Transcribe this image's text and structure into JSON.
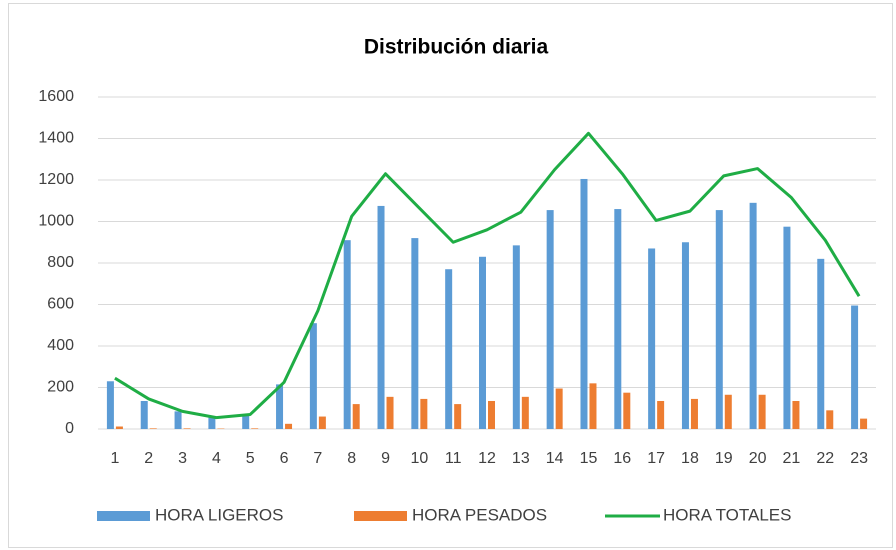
{
  "chart_data": {
    "type": "bar-line",
    "title": "Distribución diaria",
    "categories": [
      1,
      2,
      3,
      4,
      5,
      6,
      7,
      8,
      9,
      10,
      11,
      12,
      13,
      14,
      15,
      16,
      17,
      18,
      19,
      20,
      21,
      22,
      23
    ],
    "series": [
      {
        "name": "HORA LIGEROS",
        "type": "bar",
        "color": "#5b9bd5",
        "values": [
          230,
          135,
          85,
          55,
          65,
          215,
          510,
          910,
          1075,
          920,
          770,
          830,
          885,
          1055,
          1205,
          1060,
          870,
          900,
          1055,
          1090,
          975,
          820,
          595
        ]
      },
      {
        "name": "HORA PESADOS",
        "type": "bar",
        "color": "#ed7d31",
        "values": [
          12,
          3,
          3,
          2,
          3,
          25,
          60,
          120,
          155,
          145,
          120,
          135,
          155,
          195,
          220,
          175,
          135,
          145,
          165,
          165,
          135,
          90,
          50
        ]
      },
      {
        "name": "HORA TOTALES",
        "type": "line",
        "color": "#1fad45",
        "values": [
          245,
          145,
          85,
          55,
          70,
          225,
          570,
          1025,
          1230,
          1065,
          900,
          960,
          1045,
          1250,
          1425,
          1230,
          1005,
          1050,
          1220,
          1255,
          1115,
          910,
          640
        ]
      }
    ],
    "ylim": [
      0,
      1600
    ],
    "yticks": [
      0,
      200,
      400,
      600,
      800,
      1000,
      1200,
      1400,
      1600
    ],
    "grid": true,
    "legend": "bottom"
  }
}
